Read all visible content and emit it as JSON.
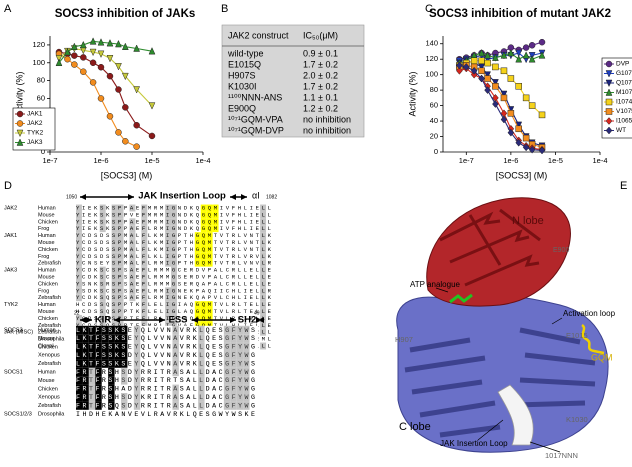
{
  "panel_labels": [
    "A",
    "B",
    "C",
    "D",
    "E"
  ],
  "chart_data": [
    {
      "type": "line",
      "title": "SOCS3 inhibition of JAKs",
      "xlabel": "[SOCS3] (M)",
      "ylabel": "Activity (%)",
      "xscale": "log",
      "xlim": [
        1e-07,
        0.0001
      ],
      "xticks": [
        {
          "value": 1e-07,
          "label": "1e-7"
        },
        {
          "value": 1e-06,
          "label": "1e-6"
        },
        {
          "value": 1e-05,
          "label": "1e-5"
        },
        {
          "value": 0.0001,
          "label": "1e-4"
        }
      ],
      "ylim": [
        0,
        130
      ],
      "yticks": [
        0,
        20,
        40,
        60,
        80,
        100,
        120
      ],
      "legend": "lower left",
      "x": [
        1.5e-07,
        2.2e-07,
        3e-07,
        4.5e-07,
        7e-07,
        1e-06,
        1.5e-06,
        2.2e-06,
        3e-06,
        5e-06,
        1e-05
      ],
      "series": [
        {
          "name": "JAK1",
          "color": "#8b1a1a",
          "marker": "circle",
          "values": [
            112,
            110,
            108,
            106,
            100,
            95,
            85,
            70,
            50,
            30,
            18
          ]
        },
        {
          "name": "JAK2",
          "color": "#f28c1e",
          "marker": "circle",
          "values": [
            110,
            104,
            98,
            90,
            78,
            60,
            40,
            22,
            12,
            6,
            null
          ]
        },
        {
          "name": "TYK2",
          "color": "#c5c83a",
          "marker": "triangle-down",
          "values": [
            105,
            113,
            116,
            114,
            112,
            110,
            105,
            96,
            85,
            70,
            52
          ]
        },
        {
          "name": "JAK3",
          "color": "#2e8b2e",
          "marker": "triangle-up",
          "values": [
            100,
            112,
            118,
            120,
            124,
            123,
            122,
            121,
            118,
            116,
            113
          ]
        }
      ]
    },
    {
      "type": "line",
      "title": "SOCS3 inhibition of mutant JAK2",
      "xlabel": "[SOCS3] (M)",
      "ylabel": "Activity (%)",
      "xscale": "log",
      "xlim": [
        3e-08,
        0.0001
      ],
      "xticks": [
        {
          "value": 1e-07,
          "label": "1e-7"
        },
        {
          "value": 1e-06,
          "label": "1e-6"
        },
        {
          "value": 1e-05,
          "label": "1e-5"
        },
        {
          "value": 0.0001,
          "label": "1e-4"
        }
      ],
      "ylim": [
        0,
        150
      ],
      "yticks": [
        0,
        20,
        40,
        60,
        80,
        100,
        120,
        140
      ],
      "legend": "right",
      "x": [
        7e-08,
        1e-07,
        1.5e-07,
        2.2e-07,
        3e-07,
        4.5e-07,
        7e-07,
        1e-06,
        1.5e-06,
        2.2e-06,
        3e-06,
        5e-06
      ],
      "series": [
        {
          "name": "DVP",
          "color": "#5b2a86",
          "marker": "circle",
          "values": [
            120,
            122,
            125,
            128,
            125,
            128,
            130,
            135,
            132,
            135,
            138,
            142
          ]
        },
        {
          "name": "G1071D",
          "color": "#1f3fbf",
          "marker": "triangle-down",
          "values": [
            118,
            120,
            122,
            125,
            120,
            122,
            125,
            125,
            128,
            120,
            125,
            128
          ]
        },
        {
          "name": "Q1072V",
          "color": "#1a237e",
          "marker": "triangle-down",
          "values": [
            115,
            118,
            115,
            110,
            100,
            90,
            75,
            55,
            35,
            20,
            12,
            8
          ]
        },
        {
          "name": "M1073P",
          "color": "#2e8b2e",
          "marker": "triangle-up",
          "values": [
            115,
            118,
            125,
            128,
            125,
            122,
            125,
            128,
            120,
            125,
            120,
            125
          ]
        },
        {
          "name": "I1074A",
          "color": "#f5d21a",
          "marker": "square",
          "values": [
            112,
            115,
            118,
            118,
            115,
            110,
            105,
            95,
            85,
            70,
            60,
            48
          ]
        },
        {
          "name": "V1075L",
          "color": "#f28c1e",
          "marker": "square",
          "values": [
            110,
            112,
            110,
            105,
            95,
            85,
            70,
            50,
            30,
            18,
            10,
            6
          ]
        },
        {
          "name": "I1065M",
          "color": "#d7261e",
          "marker": "diamond",
          "values": [
            105,
            108,
            100,
            95,
            85,
            70,
            50,
            30,
            15,
            8,
            5,
            3
          ]
        },
        {
          "name": "WT",
          "color": "#2b2b7a",
          "marker": "diamond",
          "values": [
            112,
            110,
            105,
            95,
            80,
            62,
            42,
            25,
            12,
            6,
            3,
            2
          ]
        }
      ]
    }
  ],
  "table": {
    "header": [
      "JAK2 construct",
      "IC₅₀(μM)"
    ],
    "rows": [
      [
        "wild-type",
        "0.9 ± 0.1"
      ],
      [
        "E1015Q",
        "1.7 ± 0.2"
      ],
      [
        "H907S",
        "2.0 ± 0.2"
      ],
      [
        "K1030I",
        "1.7 ± 0.2"
      ],
      [
        "¹¹⁰⁰NNN-ANS",
        "1.1 ± 0.1"
      ],
      [
        "E900Q",
        "1.2 ± 0.2"
      ],
      [
        "¹⁰⁷¹GQM-VPA",
        "no inhibition"
      ],
      [
        "¹⁰⁷¹GQM-DVP",
        "no inhibition"
      ]
    ]
  },
  "alignment": {
    "top": {
      "title": "JAK Insertion Loop",
      "helix": "αI",
      "start": "1050",
      "end": "1082",
      "groups": [
        {
          "name": "JAK2",
          "rows": [
            {
              "species": "Human",
              "seq": "YIEKSKSPPAEFMRMIGNDKQGQMIVFHLIELL"
            },
            {
              "species": "Mouse",
              "seq": "YIEKSKSPPVEFMRMIGNDKQGQMIVFHLIELL"
            },
            {
              "species": "Chicken",
              "seq": "YIEKSKSPPAEFMRMIGNDKQGQMIVFHLIELL"
            },
            {
              "species": "Frog",
              "seq": "YIEKSKSPPAEFLRMIGNDKQGQMIVFHLIELL"
            }
          ]
        },
        {
          "name": "JAK1",
          "rows": [
            {
              "species": "Human",
              "seq": "YCDSDSSPMALFLKMIGPTHGQMTVTRLVNTLK"
            },
            {
              "species": "Mouse",
              "seq": "YCDSDSSPMALFLKMIGPTHGQMTVTRLVNTLK"
            },
            {
              "species": "Chicken",
              "seq": "YCDSDSSPMALFLKMIGPTHGQMTVTRLVNTLK"
            },
            {
              "species": "Frog",
              "seq": "YCDSDSSPMALFLKLIGPTHGQMTVTRLVRVLK"
            },
            {
              "species": "Zebrafish",
              "seq": "YCNSEYSPMALFLRMIGPTHGQMTVTRLVNVLR"
            }
          ]
        },
        {
          "name": "JAK3",
          "rows": [
            {
              "species": "Human",
              "seq": "YCDKSCSPSAEFLRMMGCERDVPALCRLLELLE"
            },
            {
              "species": "Mouse",
              "seq": "YCDKSCSPSAEFLRMMGSERDVPALCRLLELLE"
            },
            {
              "species": "Chicken",
              "seq": "YSNKSRSPSAEFLRMMGSERQAPALCRLLELLE"
            },
            {
              "species": "Frog",
              "seq": "YSDKSCSPSAEFLRMIGNEKPAQIICHLIELLR"
            },
            {
              "species": "Zebrafish",
              "seq": "YCDKSQSPSAEFLRMIGNEKQAPVLCHLIELLK"
            }
          ]
        },
        {
          "name": "TYK2",
          "rows": [
            {
              "species": "Human",
              "seq": "HCDSSQSPPTKFLELIGIAQGQMTVLRLTELLE"
            },
            {
              "species": "Mouse",
              "seq": "HCDSSQSPPTKFLELIGLAQGQMTVLRLTELLE"
            },
            {
              "species": "Chicken",
              "seq": "YCDSSQSPPTEFLRLIGLAQGQMTVLRLIELLE"
            },
            {
              "species": "Zebrafish",
              "seq": "YCDSSQSPPTEFMRLIGVAEGQMTVLHLIELLE"
            }
          ]
        },
        {
          "name": "JAK (MISC)",
          "rows": [
            {
              "species": "Zebrafish",
              "seq": "YSDKSQSPPAEFMKMIGNDKQGQMIVYHLIELL"
            },
            {
              "species": "Drosophila",
              "seq": "YIDRSKSPPAAFMRLIGAKEHSKEIVYHLIEML"
            },
            {
              "species": "Clonal",
              "seq": "GARPTYEPLPNIT.......LRQLTQLVEVLLL"
            }
          ]
        }
      ]
    },
    "bottom": {
      "domains": [
        "KIR",
        "ESS",
        "SH2"
      ],
      "start": "22",
      "end": "49",
      "groups": [
        {
          "name": "SOCS3",
          "rows": [
            {
              "species": "Human",
              "seq": "LKTFSSKSEYQLVVNAVRKLQESGFYWS"
            },
            {
              "species": "Mouse",
              "seq": "LKTFSSKSEYQLVVNAVRKLQESGFYWS"
            },
            {
              "species": "Chicken",
              "seq": "LKTFSSKSEYQLVVNAVRKLQESGFYWG"
            },
            {
              "species": "Xenopus",
              "seq": "LKTFSSKSDYQLVVNAVRKLQESGFYWG"
            },
            {
              "species": "Zebrafish",
              "seq": "LKTFSSKSEYQLVVNAVRKLQESGFYWS"
            }
          ]
        },
        {
          "name": "SOCS1",
          "rows": [
            {
              "species": "Human",
              "seq": "FRTFRSHSDYRRITRASALLDACGFYWG"
            },
            {
              "species": "Mouse",
              "seq": "FRTFRSHSDYRRITRTSALLDACGFYWG"
            },
            {
              "species": "Chicken",
              "seq": "FRTFRSHADYRRITRASALLDACGFYWG"
            },
            {
              "species": "Xenopus",
              "seq": "FRTFRSHSDYKRITRASALLDACGFYWG"
            },
            {
              "species": "Zebrafish",
              "seq": "FRTFRSQSDYRRITRASALLDACGFYWG"
            }
          ]
        },
        {
          "name": "SOCS1/2/3",
          "rows": [
            {
              "species": "Drosophila",
              "seq": "IHDHEKANVEVLRAVRKLQESGWYWSKE"
            }
          ]
        }
      ]
    }
  },
  "structure": {
    "labels": [
      "N lobe",
      "E900",
      "ATP analogue",
      "H907",
      "Activation loop",
      "E1015",
      "GQM",
      "K1030",
      "C lobe",
      "JAK Insertion Loop",
      "1017NNN"
    ]
  }
}
